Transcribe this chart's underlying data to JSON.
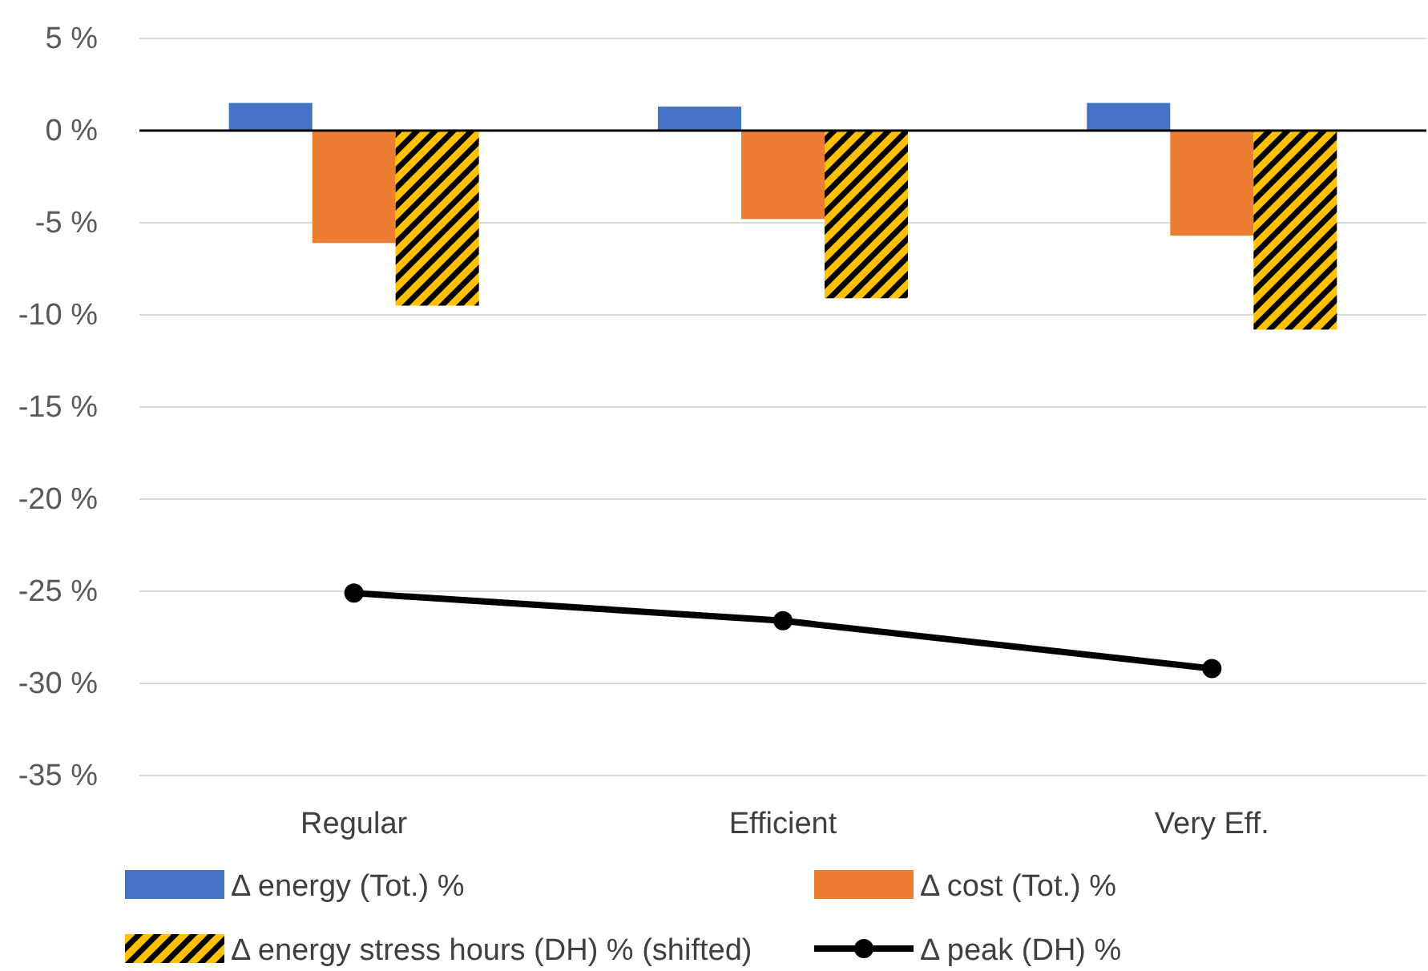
{
  "chart_data": {
    "type": "bar",
    "categories": [
      "Regular",
      "Efficient",
      "Very Eff."
    ],
    "series": [
      {
        "name": "Δ energy (Tot.) %",
        "color": "#4472c4",
        "values": [
          1.5,
          1.3,
          1.5
        ]
      },
      {
        "name": "Δ cost (Tot.) %",
        "color": "#ed7d31",
        "values": [
          -6.1,
          -4.8,
          -5.7
        ]
      },
      {
        "name": "Δ energy stress hours (DH) % (shifted)",
        "color": "#ffc000",
        "values": [
          -9.5,
          -9.1,
          -10.8
        ]
      },
      {
        "name": "Δ peak (DH) %",
        "type": "line",
        "color": "#000000",
        "marker": "circle",
        "values": [
          -25.1,
          -26.6,
          -29.2
        ]
      }
    ],
    "ylim": [
      -35,
      5
    ],
    "yticks": [
      {
        "value": 5,
        "label": "5 %"
      },
      {
        "value": 0,
        "label": "0 %"
      },
      {
        "value": -5,
        "label": "-5 %"
      },
      {
        "value": -10,
        "label": "-10 %"
      },
      {
        "value": -15,
        "label": "-15 %"
      },
      {
        "value": -20,
        "label": "-20 %"
      },
      {
        "value": -25,
        "label": "-25 %"
      },
      {
        "value": -30,
        "label": "-30 %"
      },
      {
        "value": -35,
        "label": "-35 %"
      }
    ],
    "grid": "y",
    "legend": "bottom"
  }
}
